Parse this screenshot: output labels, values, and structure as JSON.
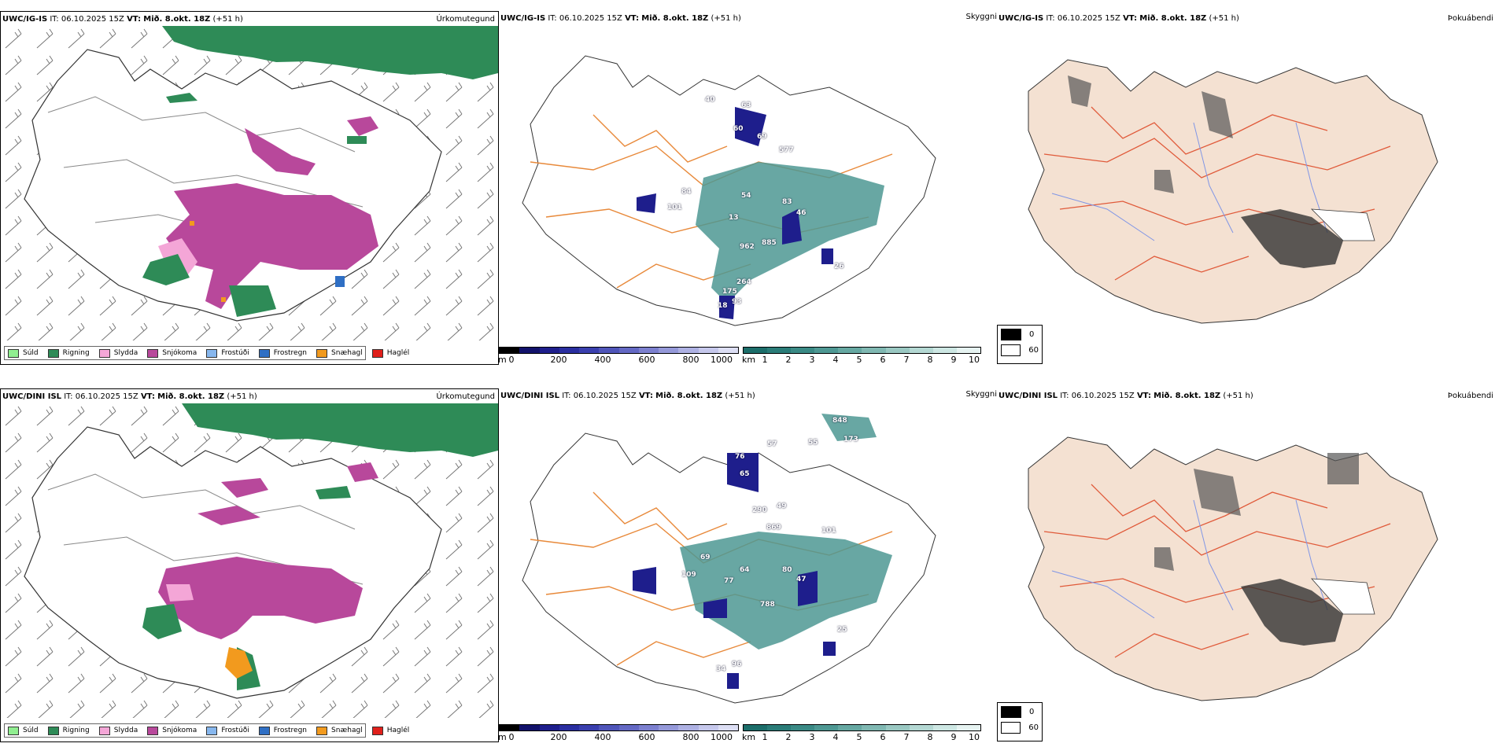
{
  "rows": [
    {
      "model": "UWC/IG-IS",
      "init_label": "IT:",
      "init_time": "06.10.2025 15Z",
      "valid_label": "VT:",
      "valid_time": "Mið. 8.okt. 18Z",
      "lead": "(+51 h)",
      "panel_titles": {
        "precip_type": "Úrkomutegund",
        "visibility": "Skyggni",
        "fog": "Þokuábendi"
      },
      "visibility_labels": [
        "63",
        "60",
        "69",
        "577",
        "84",
        "101",
        "54",
        "83",
        "46",
        "13",
        "885",
        "962",
        "264",
        "26",
        "175",
        "93",
        "18",
        "40"
      ]
    },
    {
      "model": "UWC/DINI ISL",
      "init_label": "IT:",
      "init_time": "06.10.2025 15Z",
      "valid_label": "VT:",
      "valid_time": "Mið. 8.okt. 18Z",
      "lead": "(+51 h)",
      "panel_titles": {
        "precip_type": "Úrkomutegund",
        "visibility": "Skyggni",
        "fog": "Þokuábendi"
      },
      "visibility_labels": [
        "848",
        "173",
        "76",
        "57",
        "55",
        "65",
        "290",
        "49",
        "869",
        "101",
        "69",
        "64",
        "80",
        "47",
        "109",
        "77",
        "788",
        "25",
        "96",
        "34"
      ]
    }
  ],
  "precip_legend": [
    {
      "label": "Súld",
      "color": "#90ee90"
    },
    {
      "label": "Rigning",
      "color": "#2e8b57"
    },
    {
      "label": "Slydda",
      "color": "#f4a6d7"
    },
    {
      "label": "Snjókoma",
      "color": "#b8489b"
    },
    {
      "label": "Frostúði",
      "color": "#87b7ee"
    },
    {
      "label": "Frostregn",
      "color": "#2f6fc4"
    },
    {
      "label": "Snæhagl",
      "color": "#f29a1e"
    },
    {
      "label": "Haglél",
      "color": "#e0201b"
    }
  ],
  "visibility_scale_m": {
    "unit": "m",
    "ticks": [
      "0",
      "200",
      "400",
      "600",
      "800",
      "1000"
    ],
    "colors": [
      "#000000",
      "#12126b",
      "#1e1e8c",
      "#2a2ea0",
      "#3a3fae",
      "#4f55b9",
      "#6469c4",
      "#7c80cf",
      "#9599d9",
      "#aeb1e3",
      "#c6c8ec",
      "#dcdef4"
    ]
  },
  "visibility_scale_km": {
    "unit": "km",
    "ticks": [
      "1",
      "2",
      "3",
      "4",
      "5",
      "6",
      "7",
      "8",
      "9",
      "10"
    ],
    "colors": [
      "#1c6e6a",
      "#2a7c78",
      "#3a8a85",
      "#4e9893",
      "#66a8a2",
      "#80b8b2",
      "#9ac8c2",
      "#b4d8d3",
      "#cde7e3",
      "#e6f3f1"
    ]
  },
  "fog_legend": [
    {
      "label": "0",
      "color": "#000000"
    },
    {
      "label": "60",
      "color": "#ffffff"
    }
  ]
}
